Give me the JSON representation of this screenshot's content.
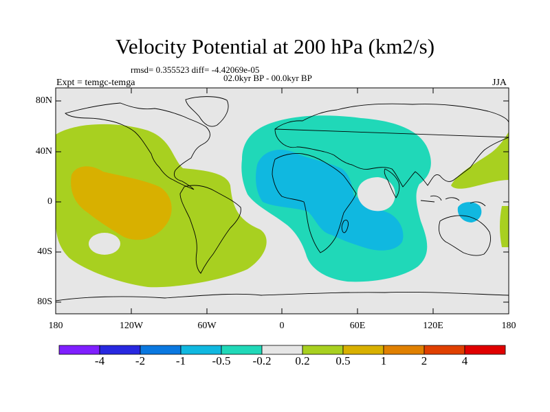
{
  "title": "Velocity Potential at 200 hPa (km2/s)",
  "stats": "rmsd= 0.355523 diff= -4.42069e-05",
  "period": "02.0kyr BP - 00.0kyr BP",
  "experiment": "Expt = temgc-temga",
  "season": "JJA",
  "map": {
    "lat_ticks": [
      "80N",
      "40N",
      "0",
      "40S",
      "80S"
    ],
    "lon_ticks": [
      "180",
      "120W",
      "60W",
      "0",
      "60E",
      "120E",
      "180"
    ],
    "ocean_color": "#e6e6e6",
    "field_regions": [
      {
        "name": "Pacific positive anomaly",
        "level": "0.2 to 0.5",
        "color": "#a8d020"
      },
      {
        "name": "Eastern Pacific core",
        "level": "0.5 to 1",
        "color": "#d8b000"
      },
      {
        "name": "Africa / Indian Ocean negative anomaly",
        "level": "-0.5 to -0.2",
        "color": "#20d8b8"
      },
      {
        "name": "Africa core",
        "level": "-1 to -0.5",
        "color": "#10b8e0"
      },
      {
        "name": "West Pacific positive anomaly",
        "level": "0.2 to 0.5",
        "color": "#a8d020"
      }
    ]
  },
  "colorbar": {
    "colors": [
      "#7f1fff",
      "#2828e0",
      "#0a78e0",
      "#10b8e0",
      "#20d8b8",
      "#e6e6e6",
      "#a8d020",
      "#d8b000",
      "#e08000",
      "#e04000",
      "#e00000"
    ],
    "labels": [
      "-4",
      "-2",
      "-1",
      "-0.5",
      "-0.2",
      "0.2",
      "0.5",
      "1",
      "2",
      "4"
    ]
  }
}
